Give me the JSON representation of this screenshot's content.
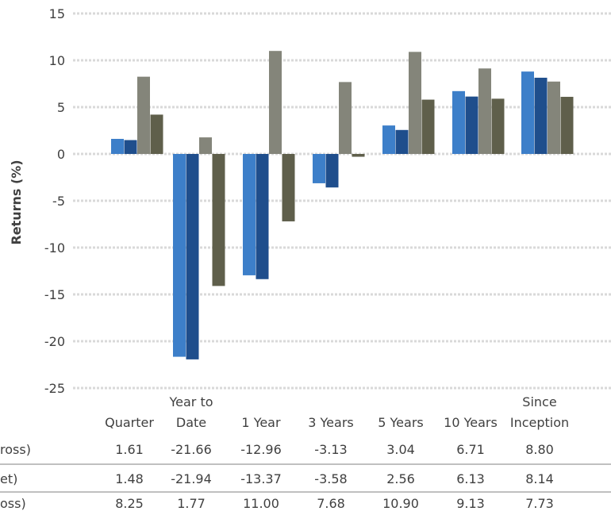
{
  "chart_data": {
    "type": "bar",
    "categories": [
      "Quarter",
      "Year to Date",
      "1 Year",
      "3 Years",
      "5 Years",
      "10 Years",
      "Since Inception"
    ],
    "category_lines": [
      [
        "Quarter"
      ],
      [
        "Year to",
        "Date"
      ],
      [
        "1 Year"
      ],
      [
        "3 Years"
      ],
      [
        "5 Years"
      ],
      [
        "10 Years"
      ],
      [
        "Since",
        "Inception"
      ]
    ],
    "series": [
      {
        "values": [
          1.61,
          -21.66,
          -12.96,
          -3.13,
          3.04,
          6.71,
          8.8
        ],
        "color": "#3d7fc9"
      },
      {
        "values": [
          1.48,
          -21.94,
          -13.37,
          -3.58,
          2.56,
          6.13,
          8.14
        ],
        "color": "#1f4e8c"
      },
      {
        "values": [
          8.25,
          1.77,
          11.0,
          7.68,
          10.9,
          9.13,
          7.73
        ],
        "color": "#84857a"
      },
      {
        "values": [
          4.2,
          -14.1,
          -7.2,
          -0.3,
          5.8,
          5.9,
          6.1
        ],
        "color": "#5f5f4b"
      }
    ],
    "ylabel": "Returns (%)",
    "ylim": [
      -25,
      15
    ],
    "yticks": [
      15,
      10,
      5,
      0,
      -5,
      -10,
      -15,
      -20,
      -25
    ],
    "grid": true,
    "table": {
      "row_labels": [
        "ross)",
        "et)",
        "oss)"
      ],
      "rows": [
        [
          "1.61",
          "-21.66",
          "-12.96",
          "-3.13",
          "3.04",
          "6.71",
          "8.80"
        ],
        [
          "1.48",
          "-21.94",
          "-13.37",
          "-3.58",
          "2.56",
          "6.13",
          "8.14"
        ],
        [
          "8.25",
          "1.77",
          "11.00",
          "7.68",
          "10.90",
          "9.13",
          "7.73"
        ]
      ]
    }
  }
}
